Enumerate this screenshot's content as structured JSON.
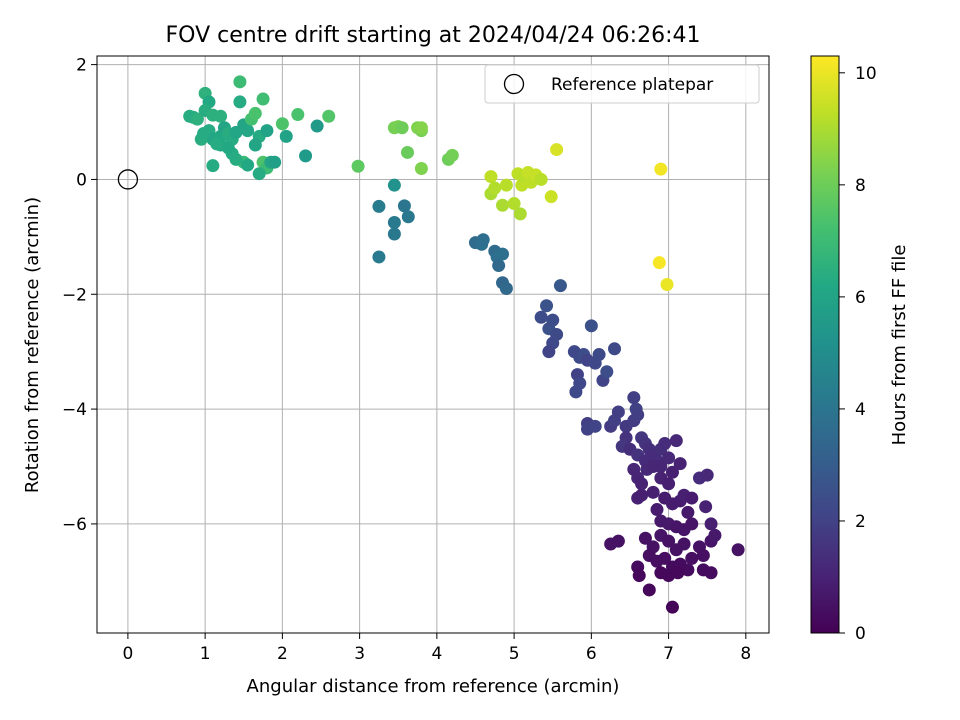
{
  "chart_data": {
    "type": "scatter",
    "title": "FOV centre drift starting at 2024/04/24 06:26:41",
    "xlabel": "Angular distance from reference (arcmin)",
    "ylabel": "Rotation from reference (arcmin)",
    "xlim": [
      -0.4,
      8.3
    ],
    "ylim": [
      -7.9,
      2.15
    ],
    "xticks": [
      "0",
      "1",
      "2",
      "3",
      "4",
      "5",
      "6",
      "7",
      "8"
    ],
    "yticks": [
      "2",
      "0",
      "−2",
      "−4",
      "−6"
    ],
    "grid": true,
    "legend": {
      "label": "Reference platepar",
      "placement": "top-right"
    },
    "reference_point": {
      "x": 0,
      "y": 0
    },
    "colorbar": {
      "label": "Hours from first FF file",
      "range": [
        0,
        10.3
      ],
      "ticks": [
        "0",
        "2",
        "4",
        "6",
        "8",
        "10"
      ],
      "colormap": "viridis"
    },
    "points": [
      [
        0.8,
        1.1,
        6.4
      ],
      [
        0.85,
        1.08,
        6.3
      ],
      [
        0.9,
        1.05,
        6.5
      ],
      [
        1.0,
        1.5,
        6.6
      ],
      [
        1.05,
        1.35,
        6.2
      ],
      [
        1.0,
        1.2,
        6.4
      ],
      [
        1.1,
        1.12,
        6.5
      ],
      [
        1.2,
        1.1,
        6.5
      ],
      [
        1.05,
        0.85,
        6.3
      ],
      [
        1.1,
        0.7,
        6.1
      ],
      [
        1.2,
        0.75,
        6.2
      ],
      [
        1.25,
        0.9,
        6.0
      ],
      [
        1.3,
        0.8,
        6.4
      ],
      [
        1.35,
        0.7,
        6.3
      ],
      [
        1.4,
        0.82,
        6.1
      ],
      [
        1.45,
        1.35,
        6.3
      ],
      [
        1.45,
        1.7,
        7.0
      ],
      [
        1.5,
        0.95,
        6.0
      ],
      [
        1.55,
        0.85,
        6.1
      ],
      [
        1.6,
        1.05,
        7.2
      ],
      [
        1.65,
        1.15,
        7.3
      ],
      [
        1.7,
        0.75,
        6.3
      ],
      [
        1.75,
        1.4,
        7.1
      ],
      [
        1.8,
        0.85,
        5.9
      ],
      [
        1.65,
        0.6,
        6.0
      ],
      [
        1.75,
        0.3,
        7.4
      ],
      [
        1.8,
        0.2,
        7.0
      ],
      [
        1.7,
        0.1,
        6.3
      ],
      [
        1.85,
        0.3,
        6.0
      ],
      [
        1.9,
        0.3,
        5.8
      ],
      [
        1.5,
        0.3,
        6.9
      ],
      [
        1.55,
        0.25,
        6.2
      ],
      [
        1.4,
        0.35,
        6.4
      ],
      [
        1.35,
        0.45,
        6.3
      ],
      [
        1.3,
        0.55,
        6.2
      ],
      [
        1.2,
        0.6,
        6.2
      ],
      [
        1.15,
        0.62,
        6.3
      ],
      [
        0.95,
        0.7,
        6.4
      ],
      [
        0.98,
        0.8,
        6.3
      ],
      [
        1.1,
        0.24,
        6.3
      ],
      [
        2.0,
        0.97,
        7.4
      ],
      [
        2.05,
        0.75,
        5.9
      ],
      [
        2.2,
        1.13,
        7.3
      ],
      [
        2.3,
        0.41,
        5.6
      ],
      [
        2.45,
        0.93,
        5.5
      ],
      [
        2.6,
        1.1,
        7.5
      ],
      [
        2.98,
        0.23,
        7.7
      ],
      [
        3.45,
        0.9,
        8.1
      ],
      [
        3.5,
        0.92,
        8.2
      ],
      [
        3.55,
        0.9,
        8.0
      ],
      [
        3.75,
        0.9,
        8.3
      ],
      [
        3.8,
        0.85,
        8.2
      ],
      [
        3.8,
        0.9,
        8.4
      ],
      [
        3.62,
        0.47,
        7.9
      ],
      [
        3.8,
        0.19,
        8.3
      ],
      [
        4.15,
        0.35,
        8.0
      ],
      [
        4.2,
        0.42,
        8.1
      ],
      [
        3.45,
        -0.1,
        5.2
      ],
      [
        3.25,
        -0.47,
        4.3
      ],
      [
        3.45,
        -0.75,
        4.2
      ],
      [
        3.45,
        -0.95,
        4.1
      ],
      [
        3.58,
        -0.46,
        4.0
      ],
      [
        3.63,
        -0.65,
        4.1
      ],
      [
        3.25,
        -1.35,
        4.2
      ],
      [
        4.5,
        -1.1,
        3.6
      ],
      [
        4.58,
        -1.13,
        3.8
      ],
      [
        4.6,
        -1.05,
        3.7
      ],
      [
        4.75,
        -1.25,
        3.6
      ],
      [
        4.78,
        -1.35,
        3.7
      ],
      [
        4.8,
        -1.5,
        3.5
      ],
      [
        4.85,
        -1.3,
        3.8
      ],
      [
        4.85,
        -1.8,
        3.4
      ],
      [
        4.9,
        -1.9,
        3.5
      ],
      [
        4.7,
        0.05,
        9.3
      ],
      [
        4.7,
        -0.25,
        9.0
      ],
      [
        4.75,
        -0.15,
        9.1
      ],
      [
        4.85,
        -0.45,
        9.0
      ],
      [
        4.9,
        -0.1,
        9.2
      ],
      [
        5.0,
        -0.42,
        9.1
      ],
      [
        5.05,
        0.1,
        9.3
      ],
      [
        5.08,
        -0.6,
        9.0
      ],
      [
        5.1,
        -0.1,
        9.3
      ],
      [
        5.12,
        0.05,
        9.2
      ],
      [
        5.18,
        0.12,
        9.4
      ],
      [
        5.22,
        -0.05,
        9.3
      ],
      [
        5.28,
        0.08,
        9.4
      ],
      [
        5.35,
        0.0,
        9.2
      ],
      [
        5.48,
        -0.3,
        9.5
      ],
      [
        5.55,
        0.52,
        9.7
      ],
      [
        6.9,
        0.18,
        10.1
      ],
      [
        6.88,
        -1.45,
        10.2
      ],
      [
        6.98,
        -1.83,
        10.0
      ],
      [
        5.6,
        -1.85,
        2.8
      ],
      [
        5.42,
        -2.2,
        2.6
      ],
      [
        5.35,
        -2.4,
        2.4
      ],
      [
        5.45,
        -2.6,
        2.5
      ],
      [
        5.5,
        -2.45,
        2.4
      ],
      [
        5.55,
        -2.7,
        2.3
      ],
      [
        5.5,
        -2.85,
        2.2
      ],
      [
        5.45,
        -3.0,
        2.1
      ],
      [
        5.78,
        -3.0,
        2.2
      ],
      [
        5.85,
        -3.1,
        2.3
      ],
      [
        5.9,
        -3.05,
        2.4
      ],
      [
        5.95,
        -3.15,
        2.1
      ],
      [
        6.0,
        -2.55,
        2.5
      ],
      [
        6.05,
        -3.2,
        2.2
      ],
      [
        6.1,
        -3.05,
        2.3
      ],
      [
        6.15,
        -3.5,
        2.1
      ],
      [
        6.2,
        -3.35,
        2.4
      ],
      [
        6.3,
        -2.95,
        2.3
      ],
      [
        5.82,
        -3.4,
        2.0
      ],
      [
        5.85,
        -3.55,
        2.2
      ],
      [
        5.8,
        -3.7,
        2.2
      ],
      [
        5.95,
        -4.25,
        1.9
      ],
      [
        5.95,
        -4.35,
        2.0
      ],
      [
        6.05,
        -4.3,
        2.1
      ],
      [
        6.25,
        -4.3,
        1.8
      ],
      [
        6.3,
        -4.2,
        1.9
      ],
      [
        6.35,
        -4.05,
        1.9
      ],
      [
        6.45,
        -4.3,
        1.7
      ],
      [
        6.55,
        -3.8,
        1.9
      ],
      [
        6.58,
        -4.0,
        2.0
      ],
      [
        6.55,
        -4.2,
        1.8
      ],
      [
        6.6,
        -4.1,
        1.9
      ],
      [
        6.65,
        -4.5,
        1.6
      ],
      [
        6.7,
        -4.6,
        1.5
      ],
      [
        6.45,
        -4.5,
        1.5
      ],
      [
        6.4,
        -4.65,
        1.6
      ],
      [
        6.5,
        -4.7,
        1.4
      ],
      [
        6.6,
        -4.8,
        1.5
      ],
      [
        6.75,
        -4.7,
        1.4
      ],
      [
        6.8,
        -4.8,
        1.3
      ],
      [
        6.85,
        -4.9,
        1.3
      ],
      [
        6.9,
        -4.7,
        1.4
      ],
      [
        6.95,
        -4.6,
        1.3
      ],
      [
        6.7,
        -4.9,
        1.3
      ],
      [
        6.72,
        -5.05,
        1.2
      ],
      [
        6.8,
        -5.0,
        1.1
      ],
      [
        6.9,
        -5.0,
        1.1
      ],
      [
        7.0,
        -4.85,
        1.2
      ],
      [
        7.1,
        -4.55,
        1.2
      ],
      [
        6.6,
        -5.2,
        1.1
      ],
      [
        6.65,
        -5.3,
        1.0
      ],
      [
        6.55,
        -5.05,
        1.1
      ],
      [
        6.6,
        -5.55,
        0.9
      ],
      [
        6.65,
        -5.5,
        0.9
      ],
      [
        6.8,
        -5.45,
        0.9
      ],
      [
        6.9,
        -5.2,
        1.0
      ],
      [
        7.0,
        -5.3,
        0.9
      ],
      [
        7.05,
        -5.1,
        0.9
      ],
      [
        7.15,
        -4.95,
        1.0
      ],
      [
        6.95,
        -5.55,
        0.8
      ],
      [
        7.05,
        -5.65,
        0.8
      ],
      [
        7.15,
        -5.6,
        0.8
      ],
      [
        7.2,
        -5.5,
        0.9
      ],
      [
        7.25,
        -5.8,
        0.7
      ],
      [
        7.3,
        -5.55,
        0.8
      ],
      [
        6.85,
        -5.75,
        0.8
      ],
      [
        6.9,
        -5.95,
        0.7
      ],
      [
        7.0,
        -6.0,
        0.7
      ],
      [
        7.1,
        -6.05,
        0.6
      ],
      [
        7.2,
        -6.1,
        0.6
      ],
      [
        7.3,
        -6.0,
        0.6
      ],
      [
        6.9,
        -6.2,
        0.6
      ],
      [
        7.0,
        -6.3,
        0.5
      ],
      [
        7.1,
        -6.45,
        0.5
      ],
      [
        7.2,
        -6.35,
        0.5
      ],
      [
        6.8,
        -6.4,
        0.5
      ],
      [
        6.75,
        -6.55,
        0.4
      ],
      [
        6.85,
        -6.65,
        0.4
      ],
      [
        6.95,
        -6.6,
        0.4
      ],
      [
        7.05,
        -6.75,
        0.3
      ],
      [
        7.15,
        -6.7,
        0.3
      ],
      [
        7.25,
        -6.8,
        0.3
      ],
      [
        7.3,
        -6.6,
        0.4
      ],
      [
        6.6,
        -6.75,
        0.3
      ],
      [
        6.62,
        -6.9,
        0.2
      ],
      [
        6.75,
        -7.15,
        0.2
      ],
      [
        6.9,
        -6.85,
        0.2
      ],
      [
        7.0,
        -6.9,
        0.2
      ],
      [
        7.05,
        -7.45,
        0.1
      ],
      [
        7.12,
        -6.85,
        0.2
      ],
      [
        7.4,
        -6.4,
        0.5
      ],
      [
        7.45,
        -6.55,
        0.4
      ],
      [
        7.45,
        -6.8,
        0.3
      ],
      [
        7.55,
        -6.3,
        0.6
      ],
      [
        7.6,
        -6.2,
        0.7
      ],
      [
        7.48,
        -5.7,
        1.0
      ],
      [
        7.55,
        -6.0,
        0.9
      ],
      [
        7.55,
        -6.85,
        0.3
      ],
      [
        7.4,
        -5.2,
        1.3
      ],
      [
        7.5,
        -5.15,
        1.2
      ],
      [
        7.9,
        -6.45,
        0.5
      ],
      [
        6.25,
        -6.35,
        0.5
      ],
      [
        6.35,
        -6.3,
        0.5
      ],
      [
        6.7,
        -6.25,
        0.5
      ]
    ]
  }
}
